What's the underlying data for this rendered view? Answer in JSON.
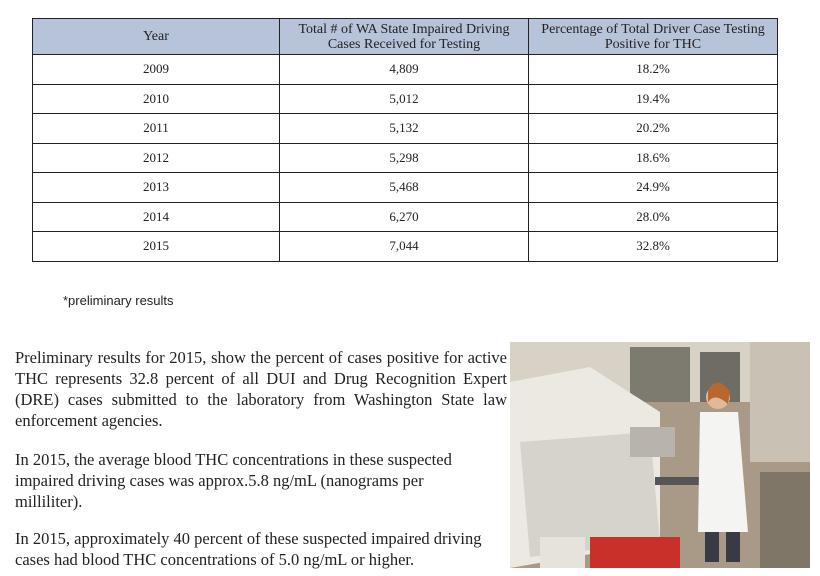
{
  "table": {
    "columns": [
      "Year",
      "Total # of WA State Impaired Driving Cases Received for Testing",
      "Percentage of Total Driver Case Testing Positive for THC"
    ],
    "rows": [
      [
        "2009",
        "4,809",
        "18.2%"
      ],
      [
        "2010",
        "5,012",
        "19.4%"
      ],
      [
        "2011",
        "5,132",
        "20.2%"
      ],
      [
        "2012",
        "5,298",
        "18.6%"
      ],
      [
        "2013",
        "5,468",
        "24.9%"
      ],
      [
        "2014",
        "6,270",
        "28.0%"
      ],
      [
        "2015",
        "7,044",
        "32.8%"
      ]
    ]
  },
  "note": "*preliminary results",
  "paragraphs": [
    "Preliminary results for 2015, show the percent of cases positive for active THC represents 32.8 percent of all DUI and Drug Recognition Expert (DRE) cases submitted to the laboratory from Washington State law enforcement agencies.",
    "In 2015, the average blood THC concentrations in these suspected impaired driving cases was approx.5.8 ng/mL (nanograms per milliliter).",
    "In 2015, approximately 40 percent of these suspected impaired driving cases had blood THC concentrations of 5.0 ng/mL or higher."
  ]
}
